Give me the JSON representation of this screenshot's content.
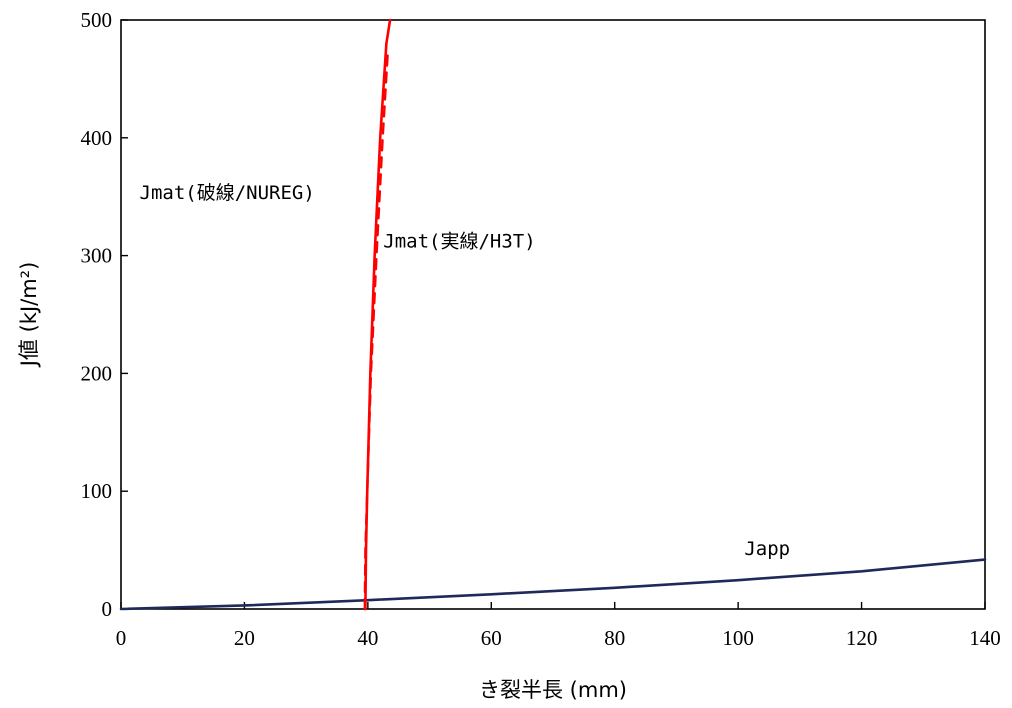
{
  "chart_data": {
    "type": "line",
    "xlabel": "き裂半長 (mm)",
    "ylabel": "J値 (kJ/m²)",
    "xlim": [
      0,
      140
    ],
    "ylim": [
      0,
      500
    ],
    "xticks": [
      0,
      20,
      40,
      60,
      80,
      100,
      120,
      140
    ],
    "yticks": [
      0,
      100,
      200,
      300,
      400,
      500
    ],
    "grid": false,
    "legend": "none",
    "series": [
      {
        "name": "Japp",
        "color": "#1f2a5a",
        "dash": "solid",
        "x": [
          0,
          20,
          40,
          60,
          80,
          100,
          120,
          140
        ],
        "y": [
          0,
          3,
          7.5,
          12.5,
          18,
          24.5,
          32,
          42
        ]
      },
      {
        "name": "Jmat(実線/H3T)",
        "color": "#ff0000",
        "dash": "solid",
        "x": [
          39.6,
          39.7,
          39.9,
          40.4,
          41.1,
          42.0,
          43.0,
          43.6
        ],
        "y": [
          0,
          50,
          100,
          200,
          300,
          400,
          480,
          500
        ]
      },
      {
        "name": "Jmat(破線/NUREG)",
        "color": "#ff0000",
        "dash": "dashed",
        "x": [
          39.5,
          39.6,
          39.9,
          40.5,
          41.4,
          42.4,
          43.2
        ],
        "y": [
          0,
          50,
          100,
          200,
          300,
          400,
          470
        ]
      }
    ],
    "annotations": [
      {
        "text": "Jmat(破線/NUREG)",
        "x": 3,
        "y": 348
      },
      {
        "text": "Jmat(実線/H3T)",
        "x": 42.5,
        "y": 307
      },
      {
        "text": "Japp",
        "x": 101,
        "y": 46
      }
    ]
  }
}
